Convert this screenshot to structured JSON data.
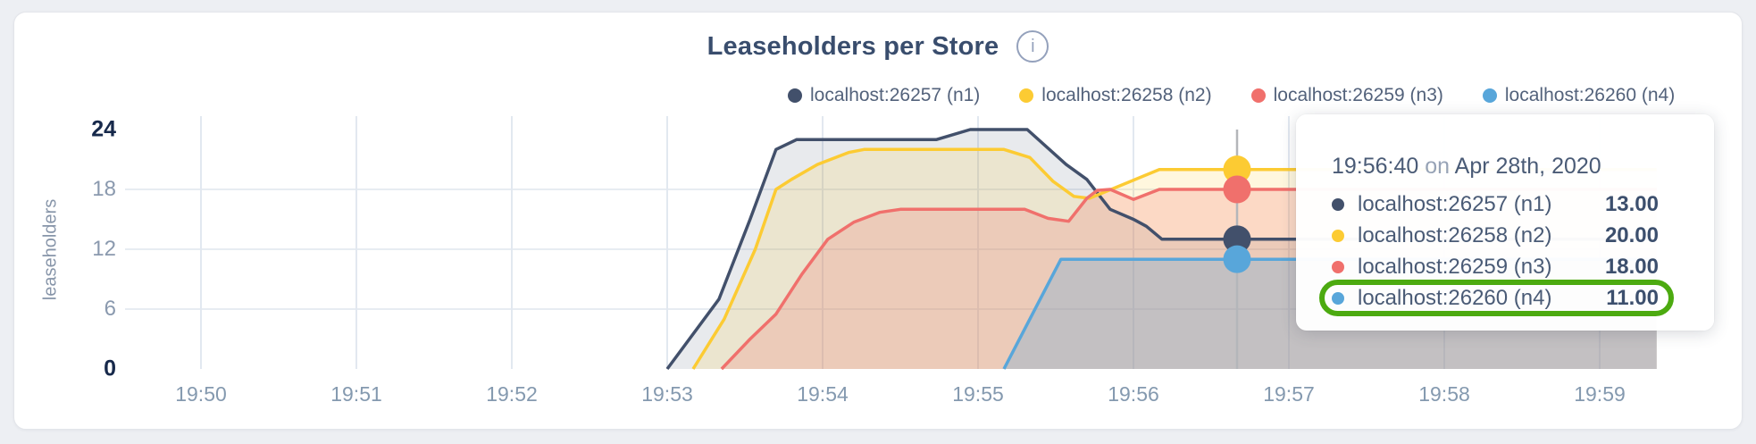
{
  "colors": {
    "n1": "#42506b",
    "n2": "#fccb33",
    "n3": "#f0706c",
    "n4": "#58a6da",
    "grid_vertical": "#e2e8f0",
    "grid_horizontal": "#e7ecf2",
    "crosshair": "#b4b6ba",
    "highlight_green": "#4caa10",
    "title_text": "#394d6d",
    "axis_major_text": "#17294b",
    "axis_minor_text": "#8a99ae"
  },
  "header": {
    "title": "Leaseholders per Store",
    "info_icon": "i"
  },
  "legend": [
    {
      "label": "localhost:26257 (n1)",
      "color": "#42506b"
    },
    {
      "label": "localhost:26258 (n2)",
      "color": "#fccb33"
    },
    {
      "label": "localhost:26259 (n3)",
      "color": "#f0706c"
    },
    {
      "label": "localhost:26260 (n4)",
      "color": "#58a6da"
    }
  ],
  "tooltip": {
    "time": "19:56:40",
    "connector": "on",
    "date": "Apr 28th, 2020",
    "rows": [
      {
        "label": "localhost:26257 (n1)",
        "value": "13.00",
        "color": "#42506b",
        "highlighted": false
      },
      {
        "label": "localhost:26258 (n2)",
        "value": "20.00",
        "color": "#fccb33",
        "highlighted": false
      },
      {
        "label": "localhost:26259 (n3)",
        "value": "18.00",
        "color": "#f0706c",
        "highlighted": false
      },
      {
        "label": "localhost:26260 (n4)",
        "value": "11.00",
        "color": "#58a6da",
        "highlighted": true
      }
    ]
  },
  "chart_data": {
    "type": "area",
    "title": "Leaseholders per Store",
    "ylabel": "leaseholders",
    "xlabel": "",
    "grid": true,
    "legend_position": "top",
    "ylim": [
      0,
      24
    ],
    "y_ticks": [
      0,
      6,
      12,
      18,
      24
    ],
    "x_ticks": [
      "19:50",
      "19:51",
      "19:52",
      "19:53",
      "19:54",
      "19:55",
      "19:56",
      "19:57",
      "19:58",
      "19:59"
    ],
    "x_tick_interval_seconds": 60,
    "x_base_time": "19:50:00",
    "x_end_offset_seconds": 562,
    "series": [
      {
        "name": "localhost:26257 (n1)",
        "color": "#42506b",
        "fill_opacity": 0.12,
        "points": [
          [
            180,
            0
          ],
          [
            200,
            7
          ],
          [
            212,
            15
          ],
          [
            222,
            22
          ],
          [
            230,
            23
          ],
          [
            284,
            23
          ],
          [
            297,
            24
          ],
          [
            319,
            24
          ],
          [
            334,
            20.5
          ],
          [
            342,
            19
          ],
          [
            351,
            16
          ],
          [
            360,
            15
          ],
          [
            365,
            14.3
          ],
          [
            371,
            13
          ],
          [
            562,
            13
          ]
        ]
      },
      {
        "name": "localhost:26258 (n2)",
        "color": "#fccb33",
        "fill_opacity": 0.16,
        "points": [
          [
            190,
            0
          ],
          [
            202,
            5
          ],
          [
            214,
            12
          ],
          [
            222,
            18
          ],
          [
            228,
            19
          ],
          [
            238,
            20.5
          ],
          [
            250,
            21.7
          ],
          [
            256,
            22
          ],
          [
            310,
            22
          ],
          [
            320,
            21.2
          ],
          [
            329,
            18.8
          ],
          [
            337,
            17.3
          ],
          [
            343,
            17.1
          ],
          [
            370,
            20
          ],
          [
            562,
            20
          ]
        ]
      },
      {
        "name": "localhost:26259 (n3)",
        "color": "#f0706c",
        "fill_opacity": 0.22,
        "points": [
          [
            201,
            0
          ],
          [
            212,
            3
          ],
          [
            222,
            5.5
          ],
          [
            232,
            9.5
          ],
          [
            242,
            13
          ],
          [
            252,
            14.7
          ],
          [
            262,
            15.7
          ],
          [
            270,
            16
          ],
          [
            318,
            16
          ],
          [
            327,
            15.1
          ],
          [
            335,
            14.8
          ],
          [
            342,
            17.1
          ],
          [
            346,
            17.9
          ],
          [
            351,
            18
          ],
          [
            360,
            17
          ],
          [
            370,
            18
          ],
          [
            562,
            18
          ]
        ]
      },
      {
        "name": "localhost:26260 (n4)",
        "color": "#58a6da",
        "fill_opacity": 0.28,
        "points": [
          [
            310,
            0
          ],
          [
            332,
            11
          ],
          [
            562,
            11
          ]
        ]
      }
    ],
    "crosshair": {
      "time": "19:56:40",
      "offset_seconds": 400,
      "values": [
        {
          "series": "localhost:26257 (n1)",
          "value": 13
        },
        {
          "series": "localhost:26258 (n2)",
          "value": 20
        },
        {
          "series": "localhost:26259 (n3)",
          "value": 18
        },
        {
          "series": "localhost:26260 (n4)",
          "value": 11
        }
      ]
    }
  }
}
